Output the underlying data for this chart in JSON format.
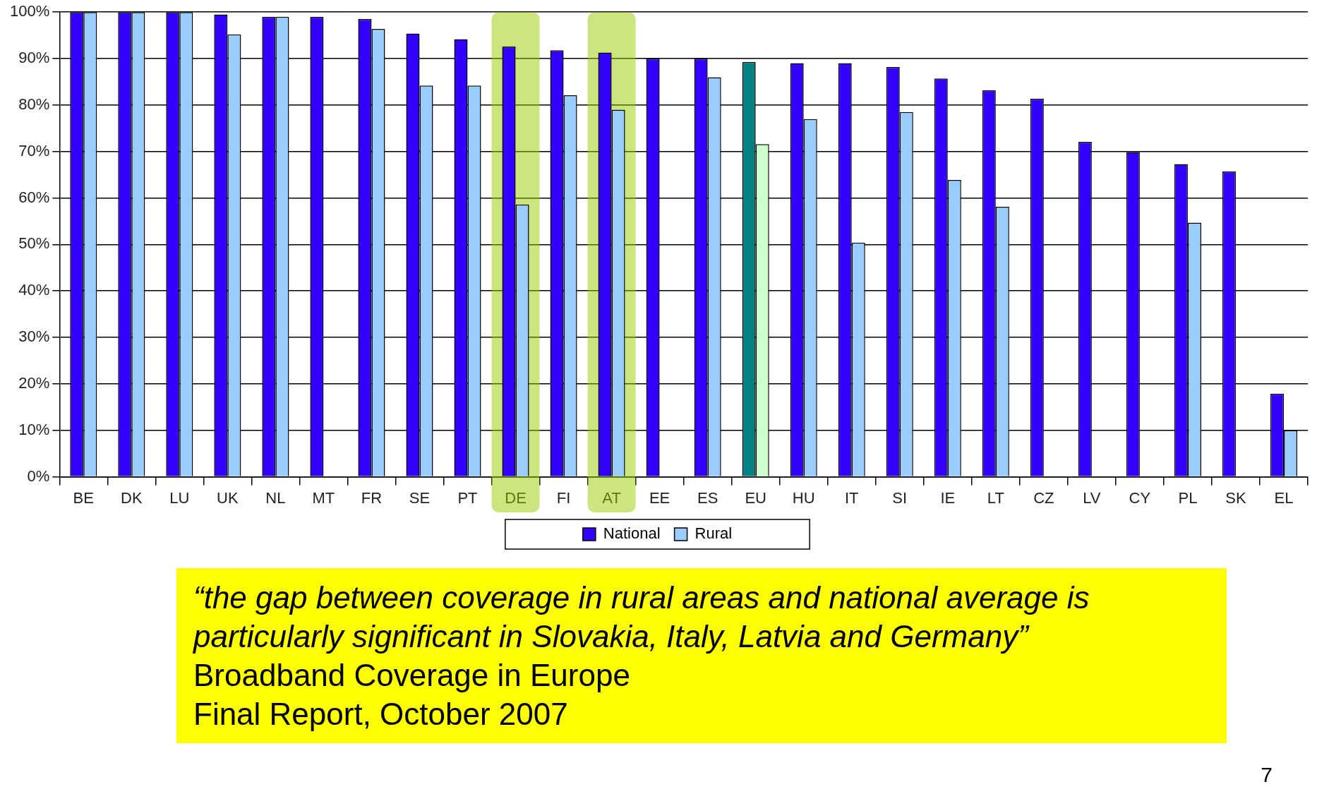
{
  "chart_data": {
    "type": "bar",
    "categories": [
      "BE",
      "DK",
      "LU",
      "UK",
      "NL",
      "MT",
      "FR",
      "SE",
      "PT",
      "DE",
      "FI",
      "AT",
      "EE",
      "ES",
      "EU",
      "HU",
      "IT",
      "SI",
      "IE",
      "LT",
      "CZ",
      "LV",
      "CY",
      "PL",
      "SK",
      "EL"
    ],
    "series": [
      {
        "name": "National",
        "color": "#3300ff",
        "colors": [
          "#3300ff",
          "#3300ff",
          "#3300ff",
          "#3300ff",
          "#3300ff",
          "#3300ff",
          "#3300ff",
          "#3300ff",
          "#3300ff",
          "#3300ff",
          "#3300ff",
          "#3300ff",
          "#3300ff",
          "#3300ff",
          "#008080",
          "#3300ff",
          "#3300ff",
          "#3300ff",
          "#3300ff",
          "#3300ff",
          "#3300ff",
          "#3300ff",
          "#3300ff",
          "#3300ff",
          "#3300ff",
          "#3300ff"
        ],
        "values": [
          100,
          100,
          100,
          99.5,
          99,
          99,
          98.5,
          95.4,
          94.2,
          92.6,
          91.8,
          91.3,
          90,
          90,
          89.3,
          89,
          89,
          88.2,
          85.7,
          83.2,
          81.4,
          72.1,
          69.9,
          67.3,
          65.7,
          17.9
        ]
      },
      {
        "name": "Rural",
        "color": "#99ccff",
        "colors": [
          "#99ccff",
          "#99ccff",
          "#99ccff",
          "#99ccff",
          "#99ccff",
          "#99ccff",
          "#99ccff",
          "#99ccff",
          "#99ccff",
          "#99ccff",
          "#99ccff",
          "#99ccff",
          "#99ccff",
          "#99ccff",
          "#ccffcc",
          "#99ccff",
          "#99ccff",
          "#99ccff",
          "#99ccff",
          "#99ccff",
          "#99ccff",
          "#99ccff",
          "#99ccff",
          "#99ccff",
          "#99ccff",
          "#99ccff"
        ],
        "values": [
          100,
          100,
          100,
          95.2,
          99,
          null,
          96.4,
          84.2,
          84.2,
          58.6,
          82.1,
          79,
          null,
          86,
          71.6,
          77,
          50.4,
          78.5,
          63.9,
          58.1,
          null,
          null,
          null,
          54.7,
          null,
          10
        ]
      }
    ],
    "ylim": [
      0,
      100
    ],
    "yticks": [
      {
        "value": 0,
        "label": "0%"
      },
      {
        "value": 10,
        "label": "10%"
      },
      {
        "value": 20,
        "label": "20%"
      },
      {
        "value": 30,
        "label": "30%"
      },
      {
        "value": 40,
        "label": "40%"
      },
      {
        "value": 50,
        "label": "50%"
      },
      {
        "value": 60,
        "label": "60%"
      },
      {
        "value": 70,
        "label": "70%"
      },
      {
        "value": 80,
        "label": "80%"
      },
      {
        "value": 90,
        "label": "90%"
      },
      {
        "value": 100,
        "label": "100%"
      }
    ],
    "grid": "y",
    "legend": "bottom",
    "bands": [
      {
        "axis": "x",
        "from": "DE",
        "to": "DE",
        "color": "#99cc00"
      },
      {
        "axis": "x",
        "from": "AT",
        "to": "AT",
        "color": "#99cc00"
      }
    ],
    "annotations": [
      "“the gap between coverage in rural areas and national average is particularly significant in Slovakia, Italy, Latvia and Germany”",
      "Broadband Coverage in Europe",
      "Final Report, October 2007",
      "7"
    ]
  }
}
